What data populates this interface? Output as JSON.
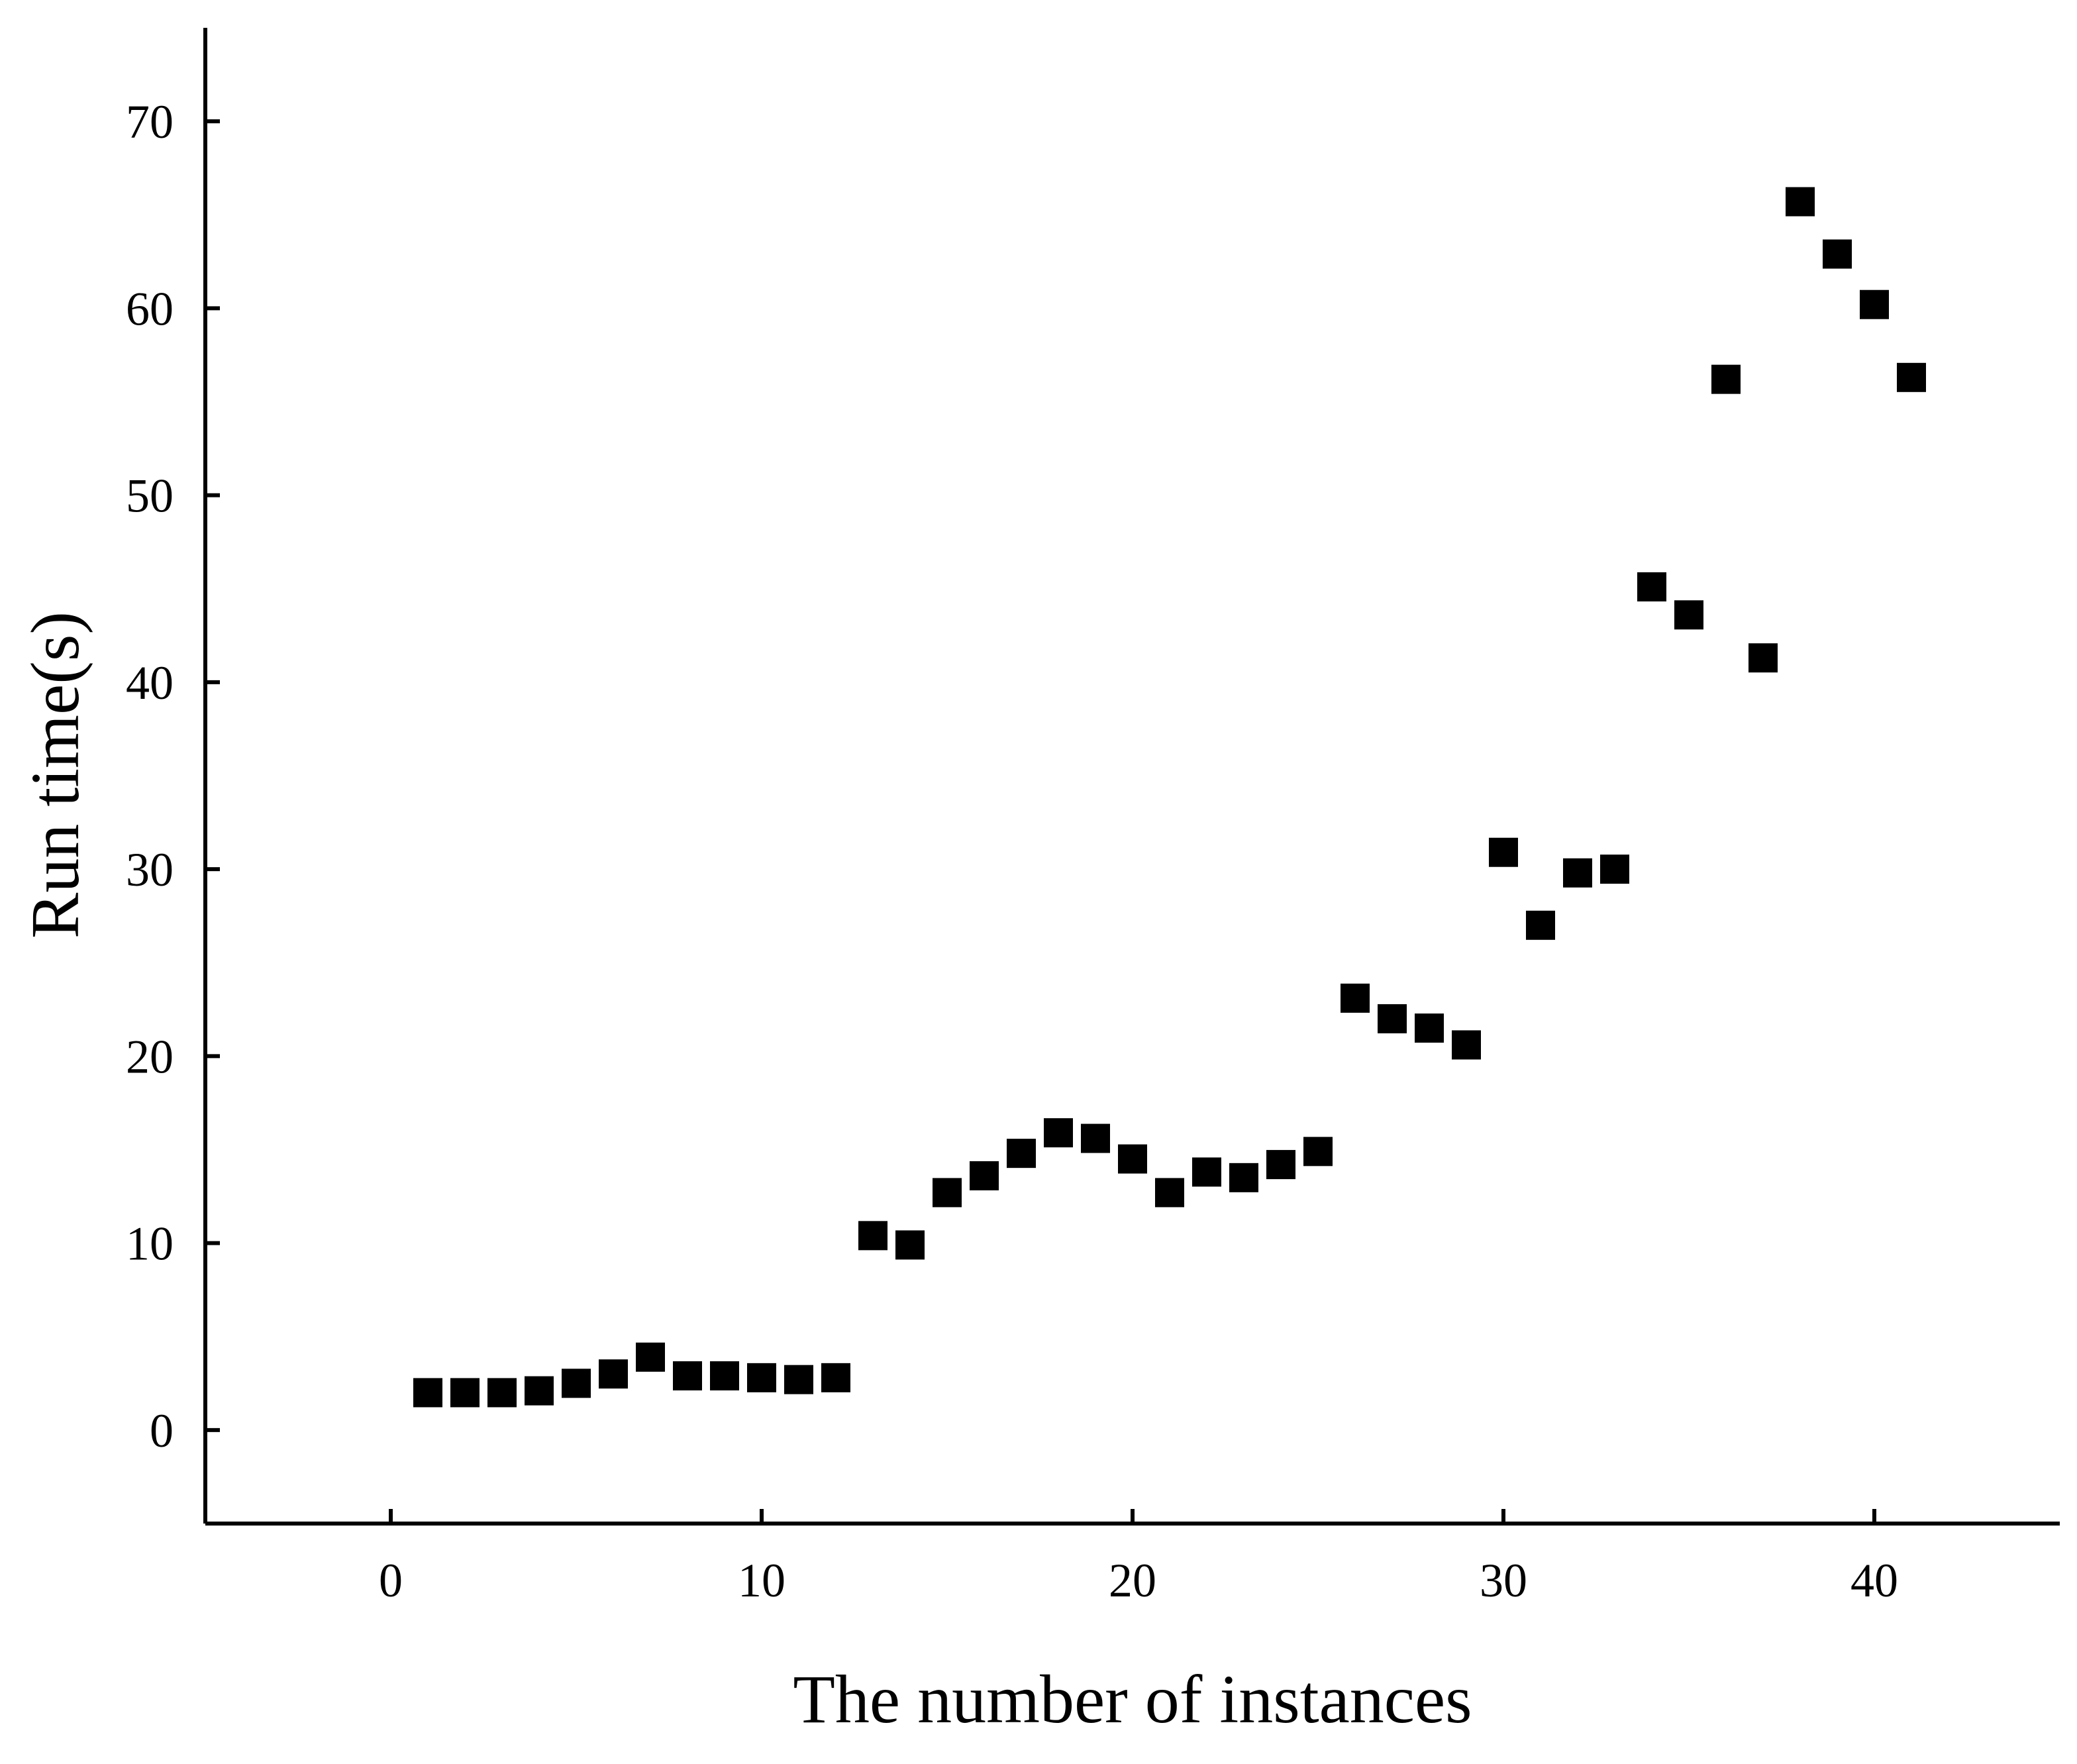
{
  "chart_data": {
    "type": "scatter",
    "title": "",
    "xlabel": "The number of instances",
    "ylabel": "Run time(s)",
    "xlim": [
      -5,
      45
    ],
    "ylim": [
      -5,
      75
    ],
    "xticks": [
      0,
      10,
      20,
      30,
      40
    ],
    "yticks": [
      0,
      10,
      20,
      30,
      40,
      50,
      60,
      70
    ],
    "xtick_labels": [
      "0",
      "10",
      "20",
      "30",
      "40"
    ],
    "ytick_labels": [
      "0",
      "10",
      "20",
      "30",
      "40",
      "50",
      "60",
      "70"
    ],
    "grid": false,
    "legend": "none",
    "marker": "square",
    "marker_color": "#000000",
    "series": [
      {
        "name": "Run time",
        "x": [
          1,
          2,
          3,
          4,
          5,
          6,
          7,
          8,
          9,
          10,
          11,
          12,
          13,
          14,
          15,
          16,
          17,
          18,
          19,
          20,
          21,
          22,
          23,
          24,
          25,
          26,
          27,
          28,
          29,
          30,
          31,
          32,
          33,
          34,
          35,
          36,
          37,
          38,
          39,
          40,
          41
        ],
        "y": [
          2.0,
          2.0,
          2.0,
          2.1,
          2.5,
          3.0,
          3.9,
          2.9,
          2.9,
          2.8,
          2.7,
          2.8,
          10.4,
          9.9,
          12.7,
          13.6,
          14.8,
          15.9,
          15.6,
          14.5,
          12.7,
          13.8,
          13.5,
          14.2,
          14.9,
          23.1,
          22.0,
          21.5,
          20.6,
          30.9,
          27.0,
          29.8,
          30.0,
          45.1,
          43.6,
          56.2,
          41.3,
          65.7,
          62.9,
          60.2,
          56.3
        ]
      }
    ]
  }
}
